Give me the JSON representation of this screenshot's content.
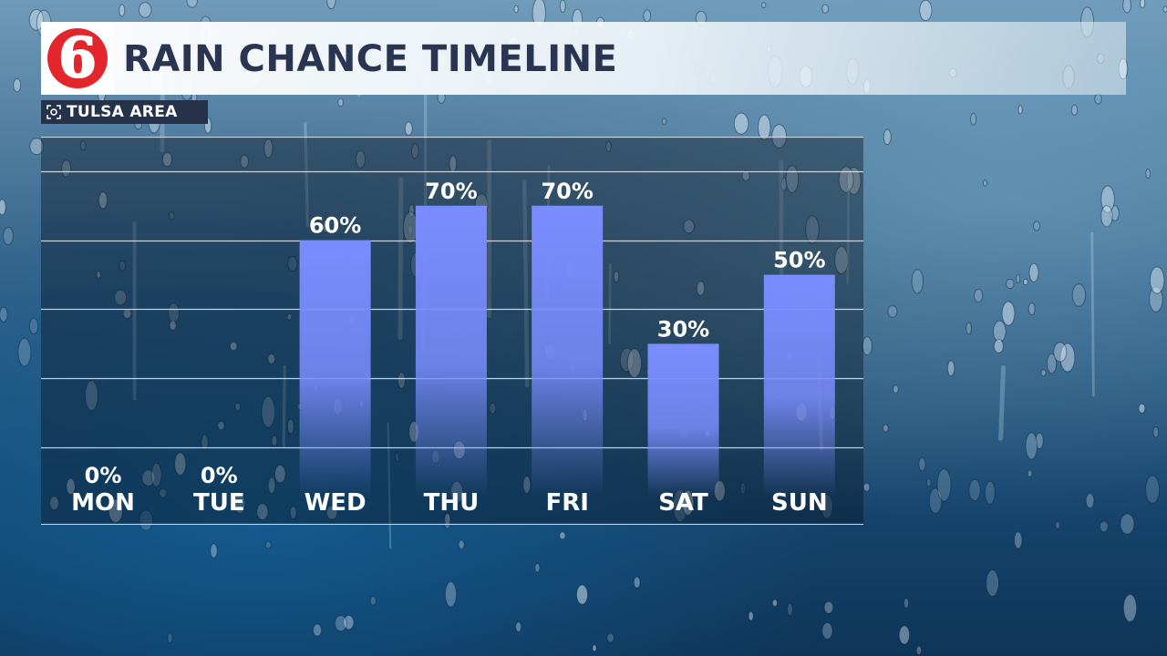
{
  "header": {
    "logo_text": "6",
    "title": "RAIN CHANCE TIMELINE",
    "location_badge": "TULSA AREA",
    "location_icon": "target-icon"
  },
  "colors": {
    "bar": "#7b8cff",
    "title_text": "#2a3552",
    "badge_bg": "#26314a",
    "logo_red": "#e3262b"
  },
  "chart_data": {
    "type": "bar",
    "categories": [
      "MON",
      "TUE",
      "WED",
      "THU",
      "FRI",
      "SAT",
      "SUN"
    ],
    "values": [
      0,
      0,
      60,
      70,
      70,
      30,
      50
    ],
    "value_labels": [
      "0%",
      "0%",
      "60%",
      "70%",
      "70%",
      "30%",
      "50%"
    ],
    "title": "RAIN CHANCE TIMELINE",
    "xlabel": "",
    "ylabel": "",
    "ylim": [
      0,
      90
    ],
    "grid": true
  }
}
